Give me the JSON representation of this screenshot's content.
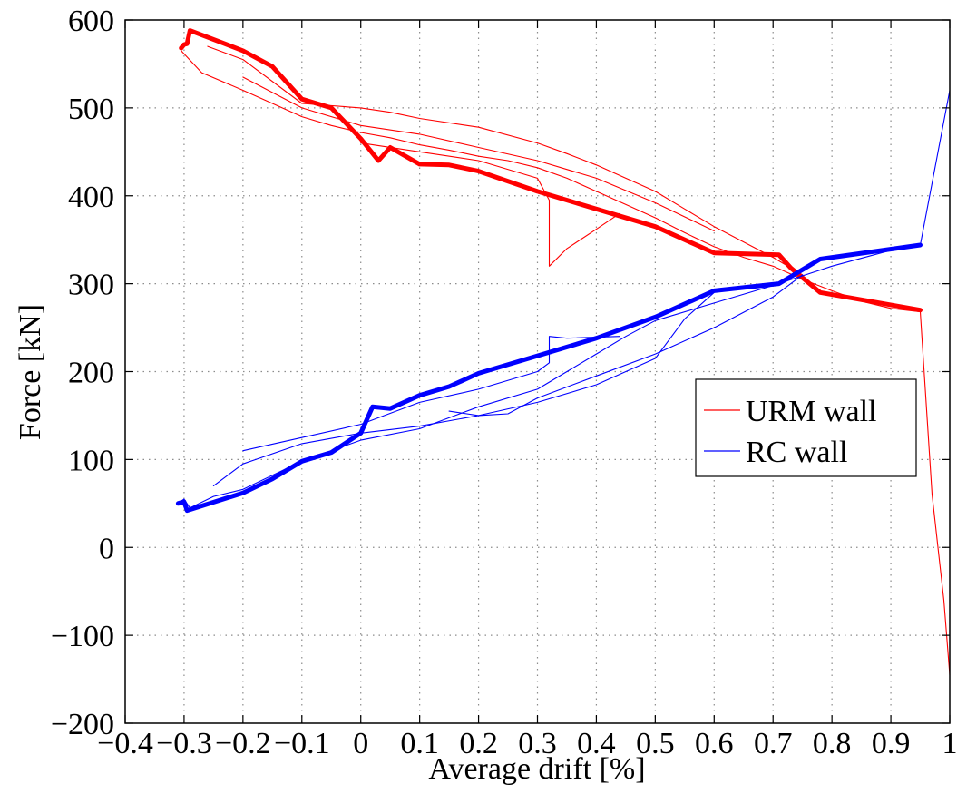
{
  "chart_data": {
    "type": "line",
    "title": "",
    "xlabel": "Average drift [%]",
    "ylabel": "Force [kN]",
    "xlim": [
      -0.4,
      1
    ],
    "ylim": [
      -200,
      600
    ],
    "xticks": [
      -0.4,
      -0.3,
      -0.2,
      -0.1,
      0,
      0.1,
      0.2,
      0.3,
      0.4,
      0.5,
      0.6,
      0.7,
      0.8,
      0.9,
      1
    ],
    "xtick_labels": [
      "−0.4",
      "−0.3",
      "−0.2",
      "−0.1",
      "0",
      "0.1",
      "0.2",
      "0.3",
      "0.4",
      "0.5",
      "0.6",
      "0.7",
      "0.8",
      "0.9",
      "1"
    ],
    "yticks": [
      -200,
      -100,
      0,
      100,
      200,
      300,
      400,
      500,
      600
    ],
    "ytick_labels": [
      "−200",
      "−100",
      "0",
      "100",
      "200",
      "300",
      "400",
      "500",
      "600"
    ],
    "grid": true,
    "legend_position": "right",
    "colors": {
      "urm": "#ff0000",
      "rc": "#0000ff"
    },
    "series": [
      {
        "name": "URM wall",
        "style": "thin",
        "color": "#ff0000",
        "x": [
          -0.305,
          -0.27,
          -0.2,
          -0.15,
          -0.1,
          -0.05,
          0,
          0.05,
          0.1,
          0.15,
          0.2,
          0.25,
          0.3,
          0.35,
          0.4,
          0.45,
          0.5,
          0.55,
          0.6,
          0.65,
          0.7,
          0.75,
          0.8,
          0.85,
          0.9,
          0.95,
          0.97,
          0.99,
          1.0
        ],
        "y": [
          565,
          540,
          520,
          505,
          490,
          480,
          472,
          466,
          458,
          452,
          445,
          440,
          432,
          420,
          405,
          390,
          375,
          358,
          342,
          330,
          320,
          305,
          292,
          280,
          272,
          268,
          60,
          -60,
          -145
        ]
      },
      {
        "name": "URM wall",
        "style": "thin",
        "color": "#ff0000",
        "x": [
          -0.26,
          -0.2,
          -0.1,
          0,
          0.05,
          0.1,
          0.2,
          0.3,
          0.35,
          0.4,
          0.45,
          0.5,
          0.55,
          0.6,
          0.7,
          0.75
        ],
        "y": [
          570,
          555,
          505,
          500,
          495,
          488,
          478,
          460,
          448,
          435,
          420,
          405,
          385,
          365,
          330,
          310
        ]
      },
      {
        "name": "URM wall",
        "style": "thin",
        "color": "#ff0000",
        "x": [
          -0.2,
          -0.1,
          0,
          0.1,
          0.2,
          0.3,
          0.4,
          0.5,
          0.6
        ],
        "y": [
          535,
          500,
          480,
          470,
          455,
          440,
          420,
          392,
          360
        ]
      },
      {
        "name": "URM wall",
        "style": "thin",
        "color": "#ff0000",
        "x": [
          0,
          0.1,
          0.2,
          0.3,
          0.32,
          0.32,
          0.35,
          0.4,
          0.44
        ],
        "y": [
          460,
          450,
          440,
          420,
          395,
          320,
          340,
          362,
          380
        ]
      },
      {
        "name": "URM wall",
        "style": "thick",
        "color": "#ff0000",
        "x": [
          -0.305,
          -0.3,
          -0.295,
          -0.29,
          -0.2,
          -0.15,
          -0.1,
          -0.05,
          0,
          0.03,
          0.05,
          0.1,
          0.15,
          0.2,
          0.3,
          0.4,
          0.5,
          0.6,
          0.71,
          0.73,
          0.78,
          0.95
        ],
        "y": [
          568,
          572,
          573,
          588,
          565,
          547,
          510,
          500,
          465,
          440,
          455,
          436,
          435,
          428,
          405,
          385,
          365,
          335,
          333,
          318,
          290,
          270
        ]
      },
      {
        "name": "RC wall",
        "style": "thin",
        "color": "#0000ff",
        "x": [
          -0.31,
          -0.3,
          -0.29,
          -0.25,
          -0.2,
          -0.1,
          0,
          0.1,
          0.2,
          0.3,
          0.35,
          0.4,
          0.45,
          0.5,
          0.6,
          0.7,
          0.8,
          0.9,
          0.95,
          1.0
        ],
        "y": [
          50,
          55,
          45,
          58,
          66,
          98,
          122,
          135,
          160,
          180,
          200,
          220,
          240,
          258,
          278,
          298,
          320,
          338,
          344,
          520
        ]
      },
      {
        "name": "RC wall",
        "style": "thin",
        "color": "#0000ff",
        "x": [
          -0.25,
          -0.2,
          -0.1,
          0,
          0.1,
          0.2,
          0.3,
          0.4,
          0.5,
          0.55,
          0.6
        ],
        "y": [
          70,
          95,
          118,
          130,
          138,
          150,
          165,
          185,
          215,
          260,
          290
        ]
      },
      {
        "name": "RC wall",
        "style": "thin",
        "color": "#0000ff",
        "x": [
          -0.2,
          -0.1,
          0,
          0.1,
          0.2,
          0.3,
          0.32,
          0.32,
          0.35,
          0.44
        ],
        "y": [
          110,
          125,
          140,
          165,
          180,
          200,
          210,
          240,
          238,
          240
        ]
      },
      {
        "name": "RC wall",
        "style": "thin",
        "color": "#0000ff",
        "x": [
          0.15,
          0.2,
          0.25,
          0.3,
          0.4,
          0.5,
          0.6,
          0.7,
          0.75
        ],
        "y": [
          155,
          150,
          152,
          170,
          195,
          220,
          250,
          285,
          310
        ]
      },
      {
        "name": "RC wall",
        "style": "thick",
        "color": "#0000ff",
        "x": [
          -0.31,
          -0.3,
          -0.295,
          -0.2,
          -0.15,
          -0.1,
          -0.05,
          0,
          0.02,
          0.05,
          0.1,
          0.15,
          0.2,
          0.3,
          0.4,
          0.5,
          0.6,
          0.71,
          0.78,
          0.95
        ],
        "y": [
          50,
          52,
          42,
          62,
          78,
          98,
          108,
          130,
          160,
          158,
          173,
          183,
          198,
          218,
          238,
          262,
          292,
          300,
          328,
          344
        ]
      }
    ],
    "legend": [
      {
        "label": "URM wall",
        "color": "#ff0000"
      },
      {
        "label": "RC wall",
        "color": "#0000ff"
      }
    ]
  }
}
